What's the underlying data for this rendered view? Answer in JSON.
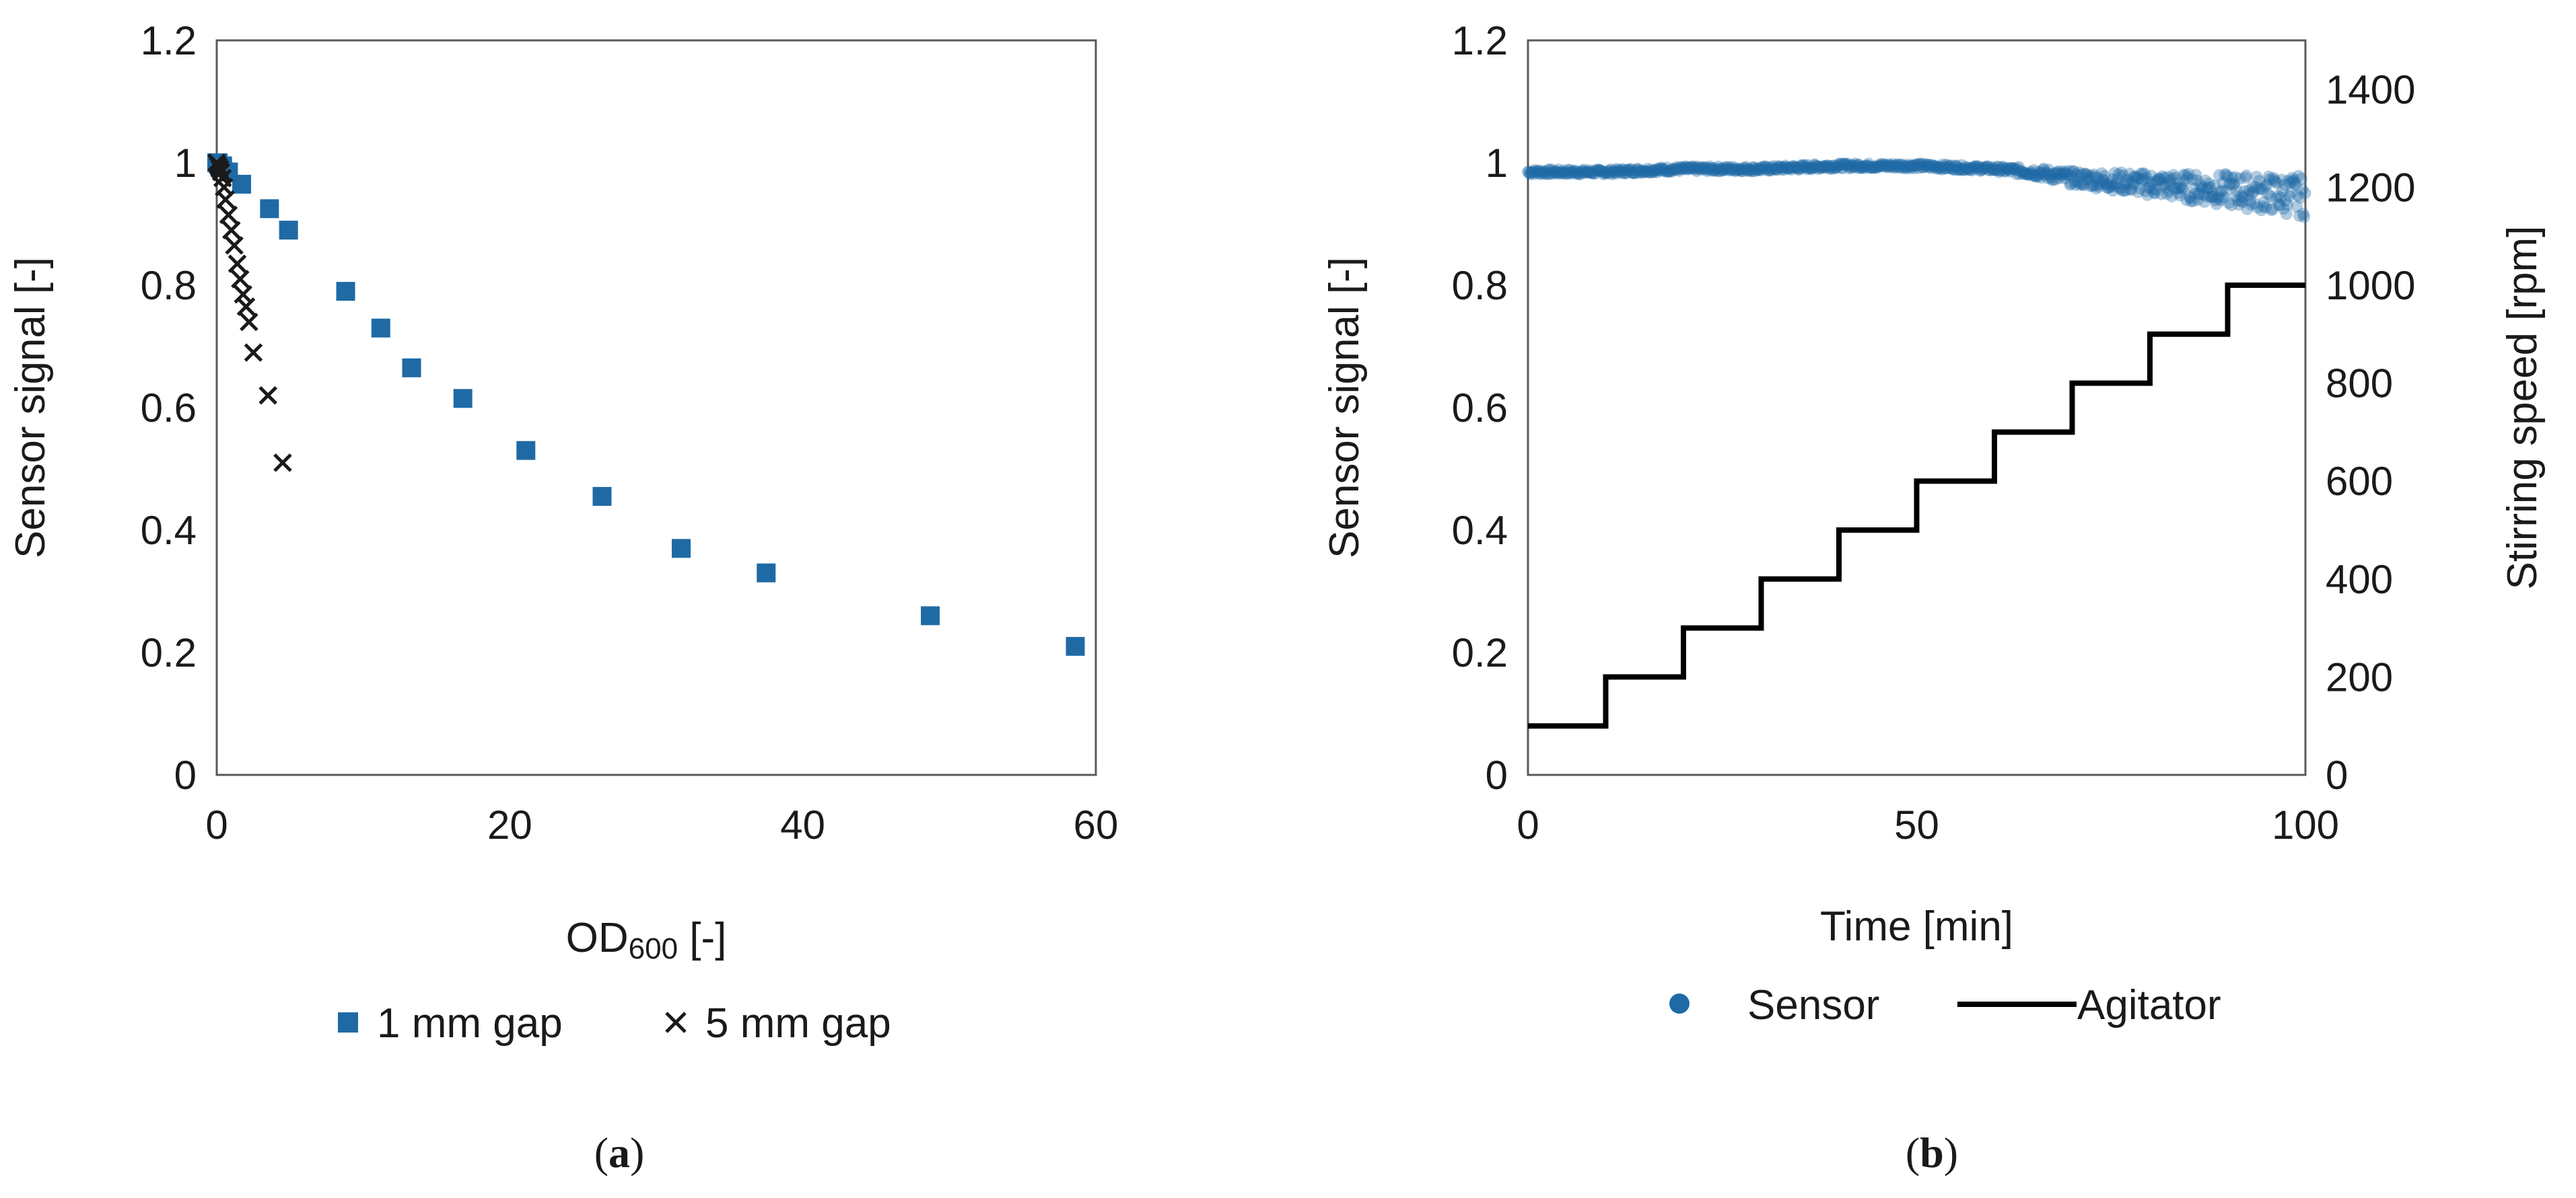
{
  "chart_data": [
    {
      "type": "scatter",
      "panel": "a",
      "caption_letter": "a",
      "title": "",
      "xlabel": "OD",
      "xlabel_subscript": "600",
      "xlabel_suffix": " [-]",
      "ylabel": "Sensor signal [-]",
      "xlim": [
        0,
        60
      ],
      "ylim": [
        0,
        1.2
      ],
      "xticks": [
        0,
        20,
        40,
        60
      ],
      "yticks": [
        0,
        0.2,
        0.4,
        0.6,
        0.8,
        1,
        1.2
      ],
      "ytick_labels": [
        "0",
        "0.2",
        "0.4",
        "0.6",
        "0.8",
        "1",
        "1.2"
      ],
      "legend_position": "bottom",
      "series": [
        {
          "name": "1 mm gap",
          "marker": "square",
          "color": "#1f6aa5",
          "x": [
            0,
            0.1,
            0.2,
            0.4,
            0.8,
            1.7,
            3.6,
            4.9,
            8.8,
            11.2,
            13.3,
            16.8,
            21.1,
            26.3,
            31.7,
            37.5,
            48.7,
            58.6
          ],
          "y": [
            1.0,
            1.0,
            0.995,
            0.995,
            0.985,
            0.965,
            0.925,
            0.89,
            0.79,
            0.73,
            0.665,
            0.615,
            0.53,
            0.455,
            0.37,
            0.33,
            0.26,
            0.21
          ]
        },
        {
          "name": "5 mm gap",
          "marker": "x",
          "color": "#1a1a1a",
          "x": [
            0,
            0.1,
            0.2,
            0.3,
            0.4,
            0.5,
            0.6,
            0.8,
            1.0,
            1.2,
            1.4,
            1.6,
            1.8,
            2.0,
            2.2,
            2.5,
            3.5,
            4.5
          ],
          "y": [
            1.0,
            0.995,
            0.99,
            0.985,
            0.975,
            0.96,
            0.94,
            0.915,
            0.89,
            0.865,
            0.835,
            0.81,
            0.785,
            0.765,
            0.74,
            0.69,
            0.62,
            0.51
          ]
        }
      ]
    },
    {
      "type": "scatter+line",
      "panel": "b",
      "caption_letter": "b",
      "title": "",
      "xlabel": "Time [min]",
      "ylabel": "Sensor signal [-]",
      "y2label": "Stirring speed [rpm]",
      "xlim": [
        0,
        100
      ],
      "ylim": [
        0,
        1.2
      ],
      "y2lim": [
        0,
        1500
      ],
      "xticks": [
        0,
        50,
        100
      ],
      "yticks": [
        0,
        0.2,
        0.4,
        0.6,
        0.8,
        1,
        1.2
      ],
      "ytick_labels": [
        "0",
        "0.2",
        "0.4",
        "0.6",
        "0.8",
        "1",
        "1.2"
      ],
      "y2ticks": [
        0,
        200,
        400,
        600,
        800,
        1000,
        1200,
        1400
      ],
      "legend_position": "bottom",
      "series": [
        {
          "name": "Sensor",
          "axis": "left",
          "marker": "circle",
          "color": "#1f6aa5",
          "x": [
            0,
            10,
            20,
            30,
            40,
            50,
            60,
            65,
            70,
            75,
            80,
            85,
            90,
            95,
            100
          ],
          "y": [
            0.985,
            0.985,
            0.99,
            0.99,
            0.995,
            0.995,
            0.99,
            0.985,
            0.975,
            0.97,
            0.965,
            0.96,
            0.955,
            0.95,
            0.945
          ]
        },
        {
          "name": "Agitator",
          "axis": "right",
          "line": "step",
          "color": "#000000",
          "x": [
            0,
            10,
            10,
            20,
            20,
            30,
            30,
            40,
            40,
            50,
            50,
            60,
            60,
            70,
            70,
            80,
            80,
            90,
            90,
            100
          ],
          "y": [
            100,
            100,
            200,
            200,
            300,
            300,
            400,
            400,
            500,
            500,
            600,
            600,
            700,
            700,
            800,
            800,
            900,
            900,
            1000,
            1000
          ]
        }
      ]
    }
  ]
}
